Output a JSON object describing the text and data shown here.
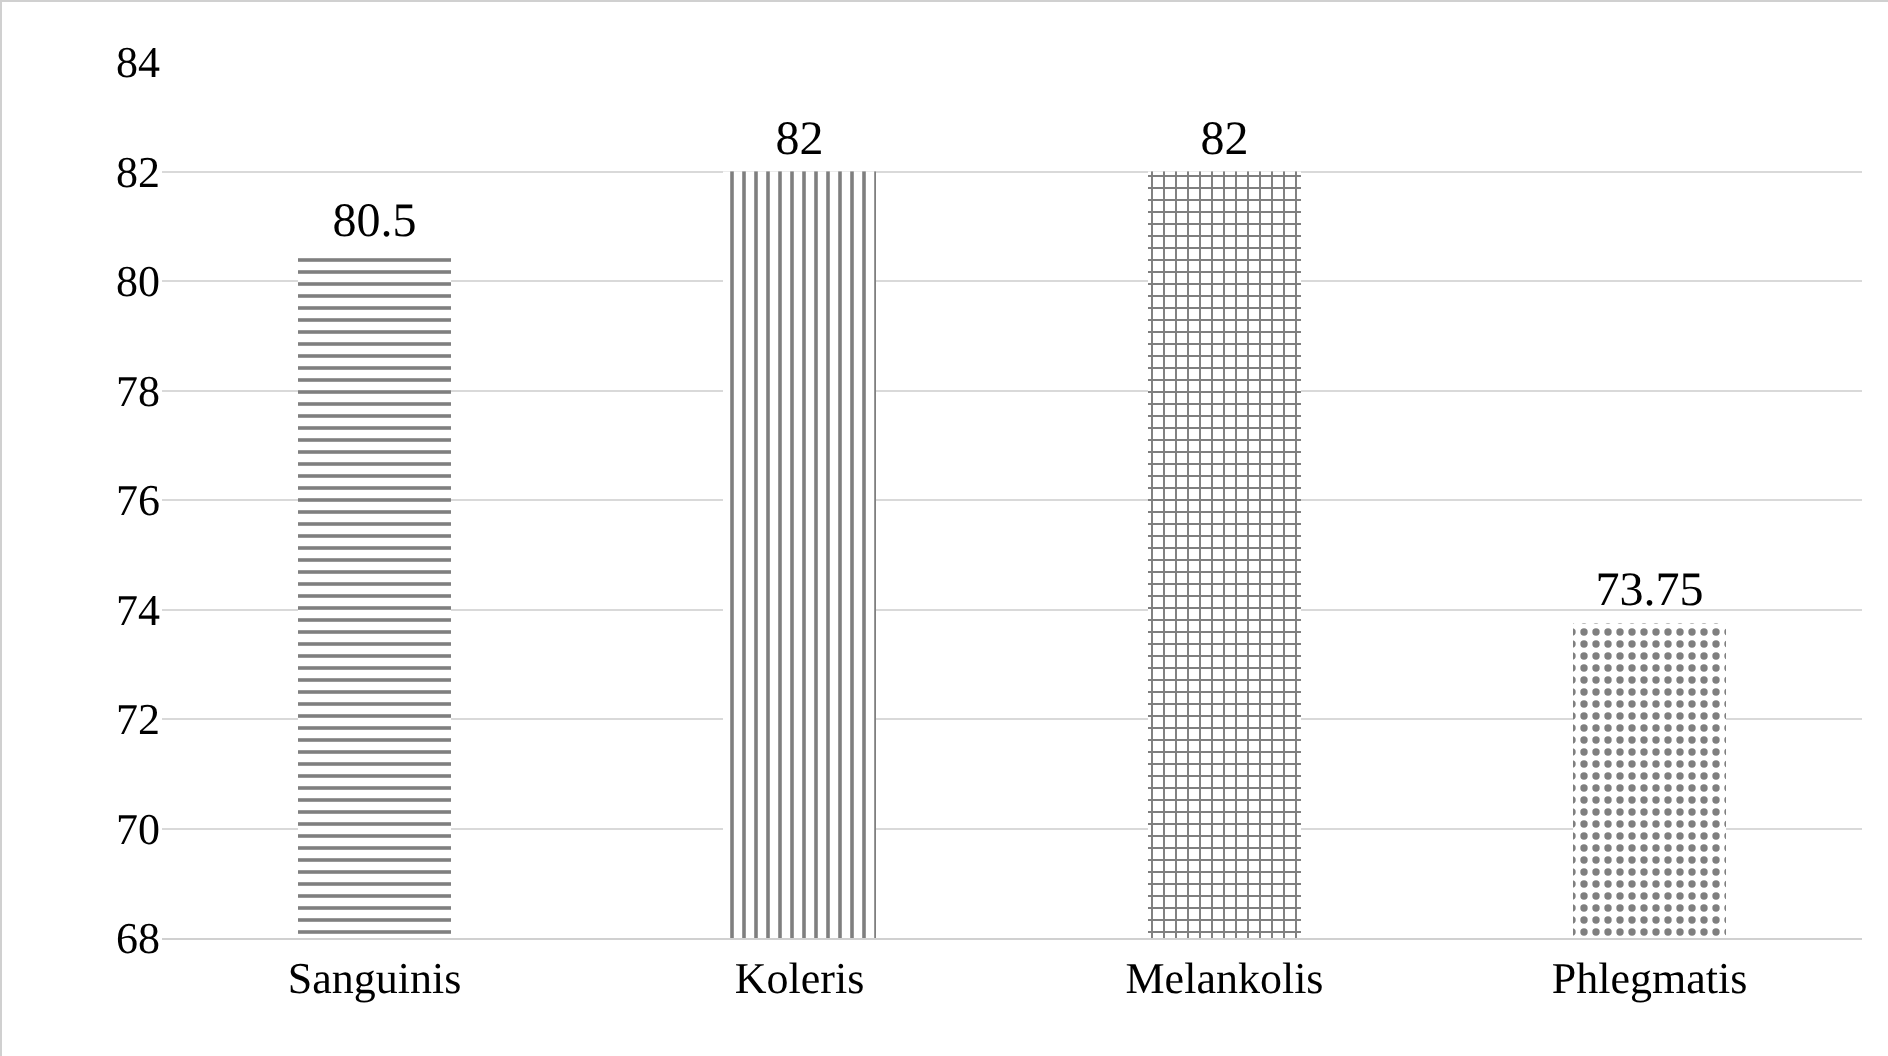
{
  "chart_data": {
    "type": "bar",
    "categories": [
      "Sanguinis",
      "Koleris",
      "Melankolis",
      "Phlegmatis"
    ],
    "values": [
      80.5,
      82,
      82,
      73.75
    ],
    "colors": [
      "#000000",
      "#000000",
      "#000000",
      "#000000"
    ],
    "ylim": [
      68,
      84
    ],
    "yticks": [
      68,
      70,
      72,
      74,
      76,
      78,
      80,
      82,
      84
    ],
    "grid": "y",
    "data_labels": true,
    "legend": false
  }
}
